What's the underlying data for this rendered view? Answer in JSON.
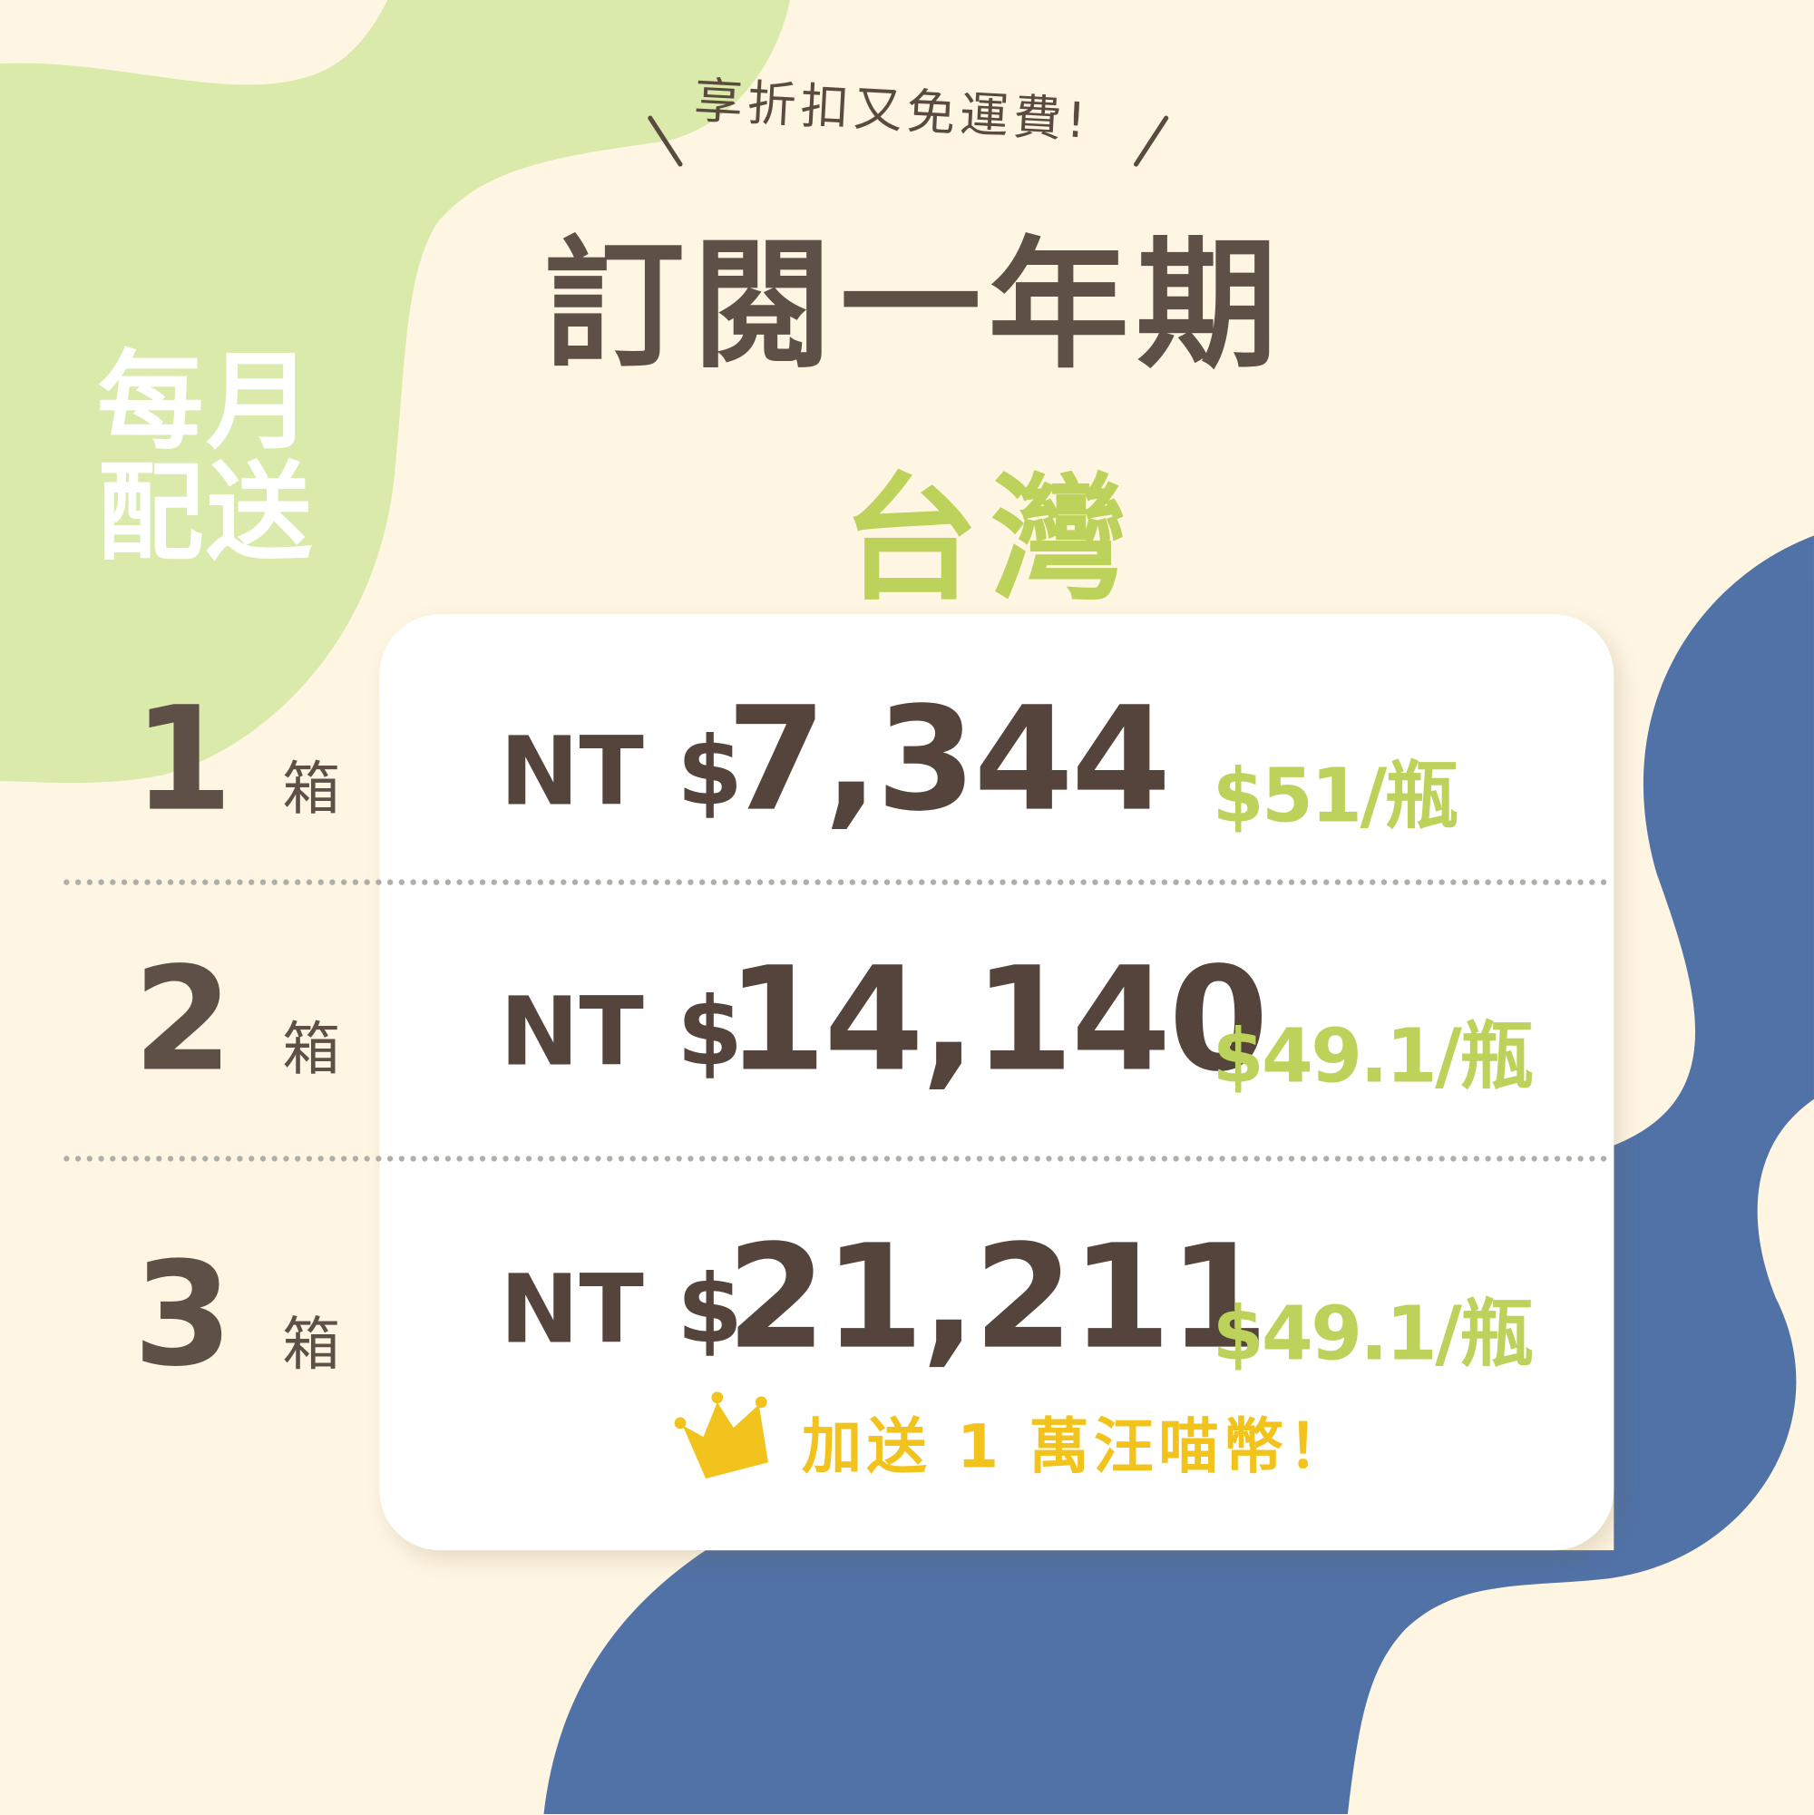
{
  "colors": {
    "background": "#FEF6E3",
    "green_blob": "#D9EAAA",
    "blue_blob": "#5072A7",
    "text_brown": "#5E5046",
    "accent_green": "#BCD25A",
    "accent_yellow": "#F2C31C",
    "card": "#FFFFFF"
  },
  "header": {
    "subtitle": "享折扣又免運費!",
    "title": "訂閱一年期",
    "region": "台灣"
  },
  "badge": {
    "line1": "每月",
    "line2": "配送"
  },
  "rows": [
    {
      "qty": "1",
      "unit": "箱",
      "currency": "NT $",
      "price": "7,344",
      "per_bottle": "$51/瓶"
    },
    {
      "qty": "2",
      "unit": "箱",
      "currency": "NT $",
      "price": "14,140",
      "per_bottle": "$49.1/瓶"
    },
    {
      "qty": "3",
      "unit": "箱",
      "currency": "NT $",
      "price": "21,211",
      "per_bottle": "$49.1/瓶"
    }
  ],
  "bonus": {
    "icon": "crown-icon",
    "text": "加送 1 萬汪喵幣！"
  }
}
